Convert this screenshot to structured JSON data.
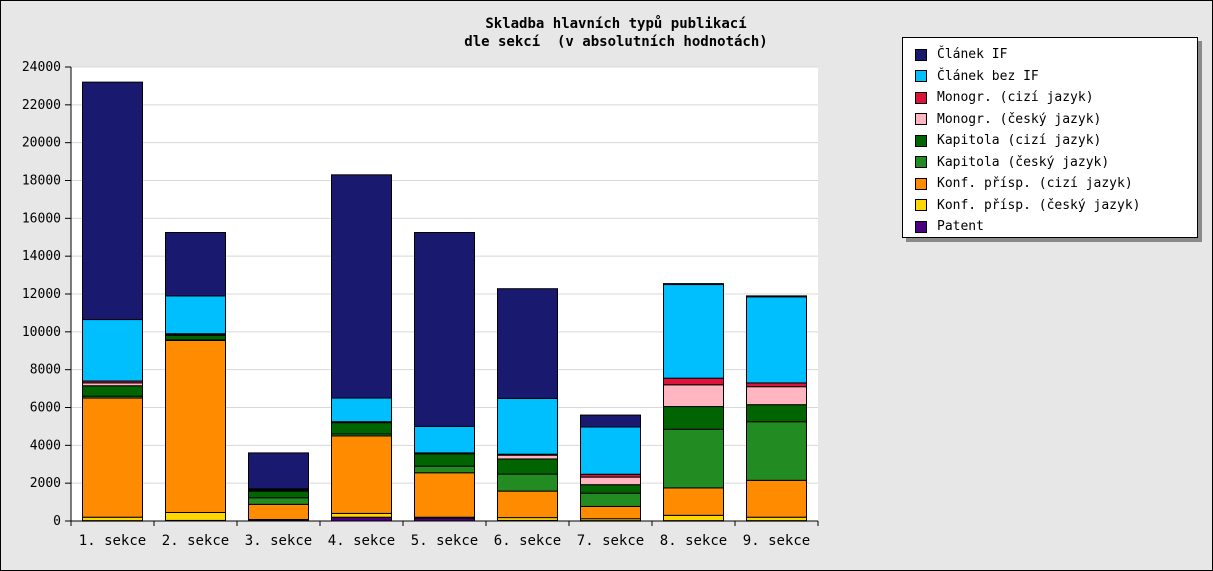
{
  "chart_data": {
    "type": "bar",
    "stacked": true,
    "title": "Skladba hlavních typů publikací\ndle sekcí  (v absolutních hodnotách)",
    "xlabel": "",
    "ylabel": "",
    "ylim": [
      0,
      24000
    ],
    "y_ticks": [
      0,
      2000,
      4000,
      6000,
      8000,
      10000,
      12000,
      14000,
      16000,
      18000,
      20000,
      22000,
      24000
    ],
    "grid": true,
    "legend_position": "top-right",
    "categories": [
      "1. sekce",
      "2. sekce",
      "3. sekce",
      "4. sekce",
      "5. sekce",
      "6. sekce",
      "7. sekce",
      "8. sekce",
      "9. sekce"
    ],
    "series": [
      {
        "name": "Patent",
        "color": "#4b0082",
        "values": [
          20,
          30,
          40,
          200,
          150,
          30,
          20,
          20,
          20
        ]
      },
      {
        "name": "Konf. přísp. (český jazyk)",
        "color": "#ffd700",
        "values": [
          180,
          420,
          40,
          200,
          50,
          150,
          100,
          280,
          180
        ]
      },
      {
        "name": "Konf. přísp. (cizí jazyk)",
        "color": "#ff8c00",
        "values": [
          6300,
          9100,
          800,
          4100,
          2350,
          1400,
          650,
          1450,
          1950
        ]
      },
      {
        "name": "Kapitola (český jazyk)",
        "color": "#228b22",
        "values": [
          100,
          20,
          350,
          100,
          350,
          900,
          700,
          3100,
          3100
        ]
      },
      {
        "name": "Kapitola (cizí jazyk)",
        "color": "#006400",
        "values": [
          550,
          250,
          350,
          600,
          650,
          800,
          450,
          1200,
          900
        ]
      },
      {
        "name": "Monogr. (český jazyk)",
        "color": "#ffb6c1",
        "values": [
          150,
          30,
          50,
          30,
          30,
          200,
          400,
          1150,
          950
        ]
      },
      {
        "name": "Monogr. (cizí jazyk)",
        "color": "#dc143c",
        "values": [
          100,
          50,
          50,
          20,
          20,
          50,
          150,
          350,
          200
        ]
      },
      {
        "name": "Článek bez IF",
        "color": "#00bfff",
        "values": [
          3250,
          2000,
          20,
          1250,
          1400,
          2950,
          2500,
          4950,
          4550
        ]
      },
      {
        "name": "Článek IF",
        "color": "#191970",
        "values": [
          12550,
          3350,
          1900,
          11800,
          10250,
          5800,
          630,
          50,
          50
        ]
      }
    ],
    "legend_order": [
      "Článek IF",
      "Článek bez IF",
      "Monogr. (cizí jazyk)",
      "Monogr. (český jazyk)",
      "Kapitola (cizí jazyk)",
      "Kapitola (český jazyk)",
      "Konf. přísp. (cizí jazyk)",
      "Konf. přísp. (český jazyk)",
      "Patent"
    ]
  },
  "legend": {
    "items": [
      {
        "label": "Článek IF",
        "color": "#191970"
      },
      {
        "label": "Článek bez IF",
        "color": "#00bfff"
      },
      {
        "label": "Monogr. (cizí jazyk)",
        "color": "#dc143c"
      },
      {
        "label": "Monogr. (český jazyk)",
        "color": "#ffb6c1"
      },
      {
        "label": "Kapitola (cizí jazyk)",
        "color": "#006400"
      },
      {
        "label": "Kapitola (český jazyk)",
        "color": "#228b22"
      },
      {
        "label": "Konf. přísp. (cizí jazyk)",
        "color": "#ff8c00"
      },
      {
        "label": "Konf. přísp. (český jazyk)",
        "color": "#ffd700"
      },
      {
        "label": "Patent",
        "color": "#4b0082"
      }
    ]
  }
}
